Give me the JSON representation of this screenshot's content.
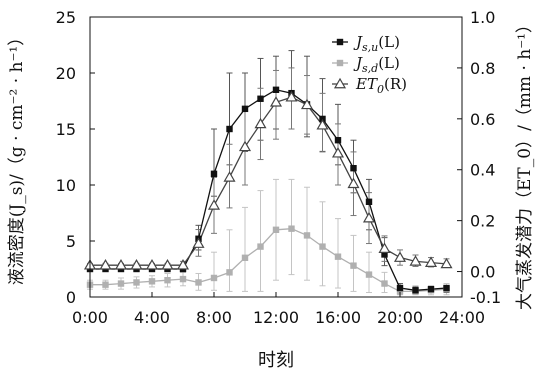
{
  "chart_data": {
    "type": "line",
    "xlabel": "时刻",
    "ylabel_left": "液流密度(J_s)/（g · cm⁻² · h⁻¹）",
    "ylabel_right": "大气蒸发潜力（ET_0）/（mm · h⁻¹）",
    "x_ticks": [
      "0:00",
      "4:00",
      "8:00",
      "12:00",
      "16:00",
      "20:00",
      "24:00"
    ],
    "xlim": [
      0,
      24
    ],
    "ylim_left": [
      0,
      25
    ],
    "ylim_right": [
      -0.1,
      1.0
    ],
    "y_ticks_left": [
      "0",
      "5",
      "10",
      "15",
      "20",
      "25"
    ],
    "y_ticks_right": [
      "-0.1",
      "0.0",
      "0.2",
      "0.4",
      "0.6",
      "0.8",
      "1.0"
    ],
    "legend_position": "top-right",
    "grid": false,
    "series": [
      {
        "name": "J_s,u(L)",
        "axis": "left",
        "color": "#111111",
        "marker": "square",
        "x": [
          0,
          1,
          2,
          3,
          4,
          5,
          6,
          7,
          8,
          9,
          10,
          11,
          12,
          13,
          14,
          15,
          16,
          17,
          18,
          19,
          20,
          21,
          22,
          23
        ],
        "values": [
          2.5,
          2.5,
          2.5,
          2.5,
          2.5,
          2.5,
          2.5,
          5.2,
          11.0,
          15.0,
          16.8,
          17.7,
          18.5,
          18.2,
          17.2,
          15.9,
          14.0,
          11.5,
          8.5,
          3.8,
          0.8,
          0.6,
          0.7,
          0.8
        ],
        "err_low": [
          2.5,
          2.5,
          2.5,
          2.5,
          2.5,
          2.5,
          2.3,
          4.2,
          9.0,
          11.8,
          13.0,
          14.0,
          15.0,
          15.0,
          14.3,
          13.0,
          11.8,
          9.3,
          6.0,
          2.8,
          0.4,
          0.4,
          0.4,
          0.4
        ],
        "err_high": [
          2.6,
          2.6,
          2.6,
          2.6,
          2.6,
          2.6,
          2.7,
          6.4,
          15.0,
          20.0,
          20.0,
          21.3,
          21.5,
          22.0,
          21.5,
          19.5,
          17.2,
          14.0,
          10.5,
          5.3,
          1.2,
          0.9,
          0.9,
          1.0
        ]
      },
      {
        "name": "J_s,d(L)",
        "axis": "left",
        "color": "#b0b0b0",
        "marker": "square",
        "x": [
          0,
          1,
          2,
          3,
          4,
          5,
          6,
          7,
          8,
          9,
          10,
          11,
          12,
          13,
          14,
          15,
          16,
          17,
          18,
          19,
          20,
          21,
          22,
          23
        ],
        "values": [
          1.1,
          1.1,
          1.2,
          1.3,
          1.4,
          1.5,
          1.6,
          1.3,
          1.7,
          2.2,
          3.5,
          4.5,
          6.0,
          6.1,
          5.5,
          4.5,
          3.6,
          2.8,
          2.0,
          1.2,
          0.5,
          0.5,
          0.6,
          0.7
        ],
        "err_low": [
          0.7,
          0.7,
          0.7,
          0.8,
          0.9,
          0.9,
          1.0,
          0.6,
          0.6,
          0.5,
          0.5,
          0.5,
          1.5,
          2.0,
          1.5,
          1.0,
          0.8,
          0.5,
          0.4,
          0.4,
          0.2,
          0.2,
          0.2,
          0.2
        ],
        "err_high": [
          1.5,
          1.5,
          1.7,
          1.8,
          1.9,
          2.1,
          2.2,
          2.1,
          4.0,
          6.0,
          8.0,
          9.5,
          10.5,
          10.5,
          9.8,
          8.5,
          7.0,
          5.5,
          4.0,
          2.2,
          1.0,
          1.0,
          1.0,
          1.2
        ]
      },
      {
        "name": "ET_0(R)",
        "axis": "right",
        "color": "#444444",
        "marker": "triangle-open",
        "x": [
          0,
          1,
          2,
          3,
          4,
          5,
          6,
          7,
          8,
          9,
          10,
          11,
          12,
          13,
          14,
          15,
          16,
          17,
          18,
          19,
          20,
          21,
          22,
          23
        ],
        "values": [
          0.025,
          0.025,
          0.025,
          0.025,
          0.025,
          0.025,
          0.025,
          0.11,
          0.26,
          0.37,
          0.49,
          0.58,
          0.665,
          0.685,
          0.655,
          0.575,
          0.465,
          0.345,
          0.21,
          0.09,
          0.055,
          0.04,
          0.035,
          0.03
        ],
        "err_low": [
          0.02,
          0.02,
          0.02,
          0.02,
          0.02,
          0.02,
          0.012,
          0.06,
          0.15,
          0.25,
          0.34,
          0.44,
          0.52,
          0.56,
          0.54,
          0.47,
          0.34,
          0.22,
          0.11,
          0.04,
          0.025,
          0.02,
          0.018,
          0.016
        ],
        "err_high": [
          0.032,
          0.032,
          0.032,
          0.032,
          0.032,
          0.032,
          0.04,
          0.165,
          0.37,
          0.5,
          0.64,
          0.72,
          0.79,
          0.8,
          0.77,
          0.7,
          0.58,
          0.47,
          0.31,
          0.14,
          0.085,
          0.065,
          0.055,
          0.05
        ]
      }
    ]
  }
}
